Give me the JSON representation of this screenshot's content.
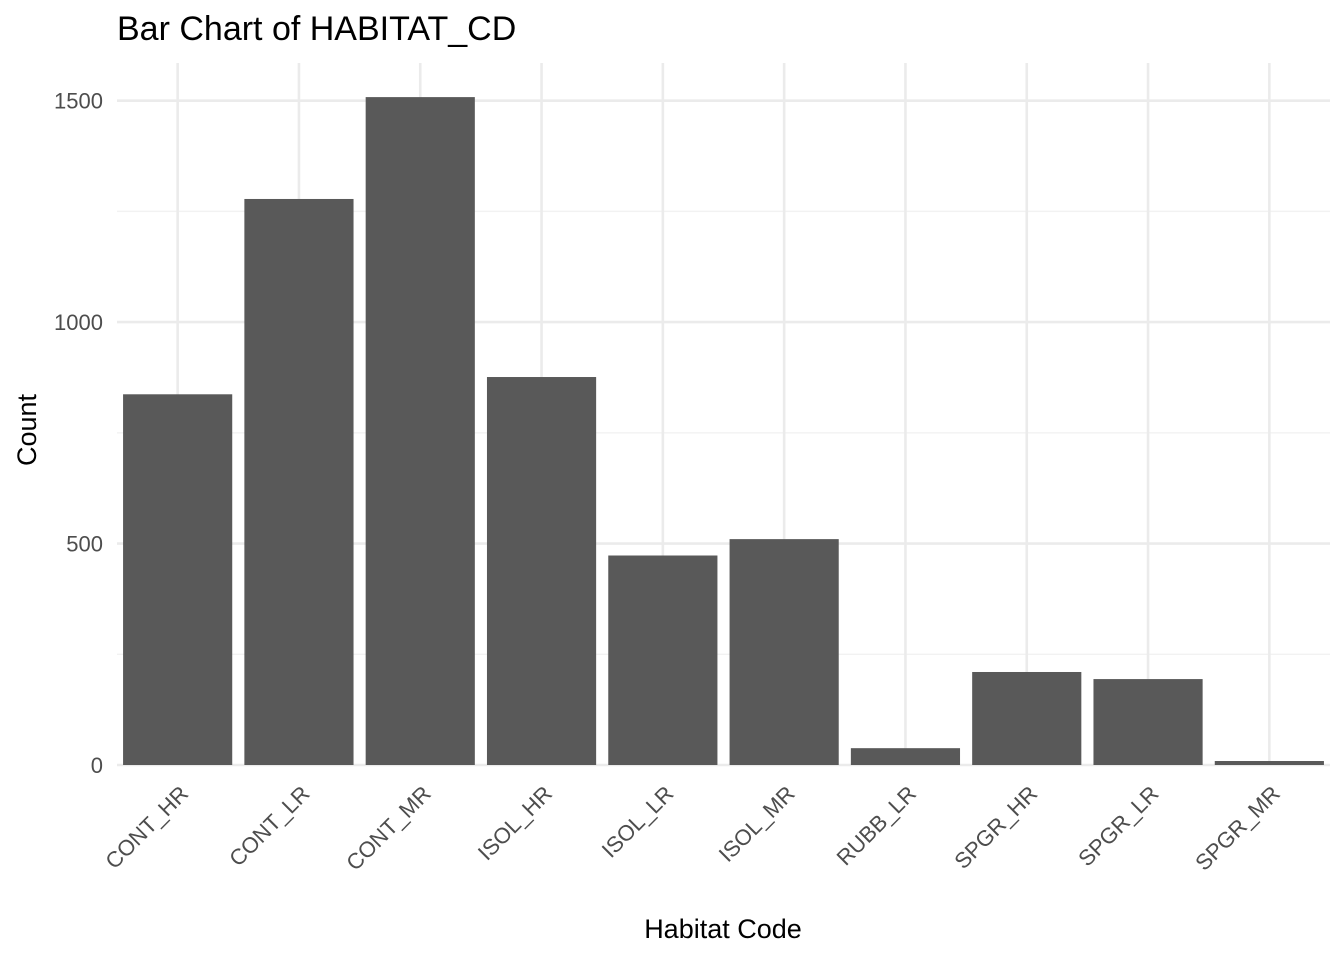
{
  "chart_data": {
    "type": "bar",
    "title": "Bar Chart of HABITAT_CD",
    "xlabel": "Habitat Code",
    "ylabel": "Count",
    "categories": [
      "CONT_HR",
      "CONT_LR",
      "CONT_MR",
      "ISOL_HR",
      "ISOL_LR",
      "ISOL_MR",
      "RUBB_LR",
      "SPGR_HR",
      "SPGR_LR",
      "SPGR_MR"
    ],
    "values": [
      837,
      1278,
      1508,
      876,
      473,
      510,
      38,
      210,
      194,
      9
    ],
    "ylim": [
      0,
      1585
    ],
    "yticks": [
      0,
      500,
      1000,
      1500
    ],
    "yticks_minor": [
      250,
      750,
      1250
    ],
    "grid": true,
    "legend": "none",
    "colors": {
      "bar": "#595959",
      "grid_major": "#ebebeb",
      "grid_minor": "#f2f2f2",
      "tick_text": "#4d4d4d",
      "text": "#000000"
    }
  }
}
